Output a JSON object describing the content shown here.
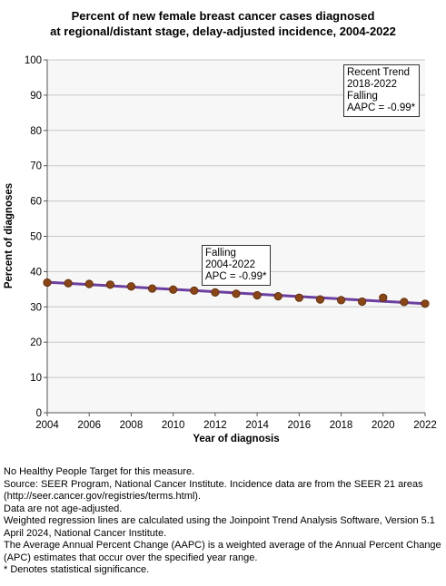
{
  "title_lines": [
    "Percent of new female breast cancer cases diagnosed",
    "at regional/distant stage, delay-adjusted incidence, 2004-2022"
  ],
  "chart_data": {
    "type": "line",
    "title": "Percent of new female breast cancer cases diagnosed at regional/distant stage, delay-adjusted incidence, 2004-2022",
    "xlabel": "Year of diagnosis",
    "ylabel": "Percent of diagnoses",
    "xlim": [
      2004,
      2022
    ],
    "ylim": [
      0,
      100
    ],
    "x_ticks": [
      2004,
      2006,
      2008,
      2010,
      2012,
      2014,
      2016,
      2018,
      2020,
      2022
    ],
    "y_ticks": [
      0,
      10,
      20,
      30,
      40,
      50,
      60,
      70,
      80,
      90,
      100
    ],
    "grid": "horizontal",
    "series": [
      {
        "kind": "observed",
        "marker": "circle",
        "color": "#8B4513",
        "x": [
          2004,
          2005,
          2006,
          2007,
          2008,
          2009,
          2010,
          2011,
          2012,
          2013,
          2014,
          2015,
          2016,
          2017,
          2018,
          2019,
          2020,
          2021,
          2022
        ],
        "y": [
          36.9,
          36.7,
          36.5,
          36.3,
          35.8,
          35.2,
          34.9,
          34.6,
          34.1,
          33.7,
          33.3,
          33.0,
          32.6,
          32.1,
          31.9,
          31.5,
          32.6,
          31.4,
          30.9
        ]
      },
      {
        "kind": "trend",
        "color": "#6b3fa0",
        "x": [
          2004,
          2022
        ],
        "y": [
          37.0,
          30.9
        ]
      }
    ],
    "annotations": [
      {
        "id": "recent",
        "lines": [
          "Recent Trend",
          "2018-2022",
          "Falling",
          "AAPC = -0.99*"
        ]
      },
      {
        "id": "overall",
        "lines": [
          "Falling",
          "2004-2022",
          "APC = -0.99*"
        ]
      }
    ]
  },
  "footnotes": [
    "No Healthy People Target for this measure.",
    "Source: SEER Program, National Cancer Institute. Incidence data are from the SEER 21 areas (http://seer.cancer.gov/registries/terms.html).",
    "Data are not age-adjusted.",
    "Weighted regression lines are calculated using the Joinpoint Trend Analysis Software, Version 5.1 April 2024, National Cancer Institute.",
    "The Average Annual Percent Change (AAPC) is a weighted average of the Annual Percent Change (APC) estimates that occur over the specified year range.",
    "* Denotes statistical significance."
  ]
}
